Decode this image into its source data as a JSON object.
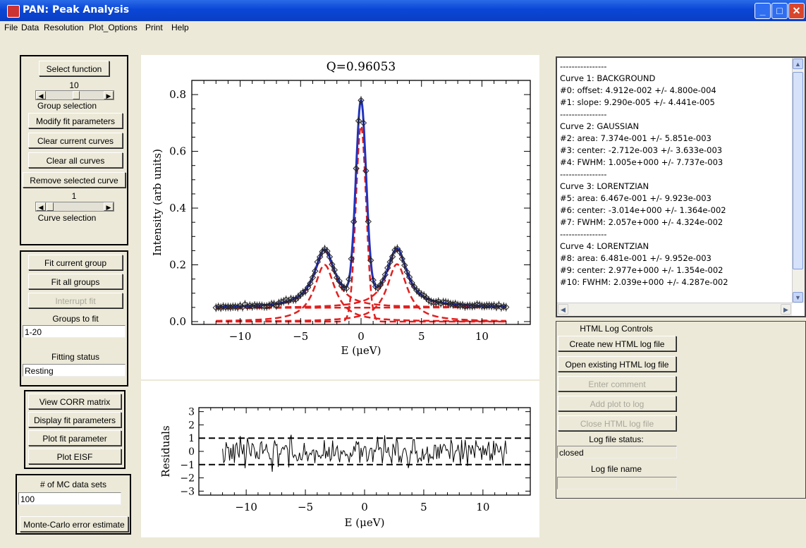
{
  "window": {
    "title": "PAN: Peak Analysis"
  },
  "menu": [
    "File",
    "Data",
    "Resolution",
    "Plot_Options",
    "Print",
    "Help"
  ],
  "left": {
    "select_function": "Select function",
    "group_value": "10",
    "group_label": "Group selection",
    "modify": "Modify fit parameters",
    "clear_current": "Clear current curves",
    "clear_all": "Clear all curves",
    "remove_selected": "Remove selected curve",
    "curve_value": "1",
    "curve_label": "Curve selection",
    "fit_current": "Fit current group",
    "fit_all": "Fit all groups",
    "interrupt": "Interrupt fit",
    "groups_to_fit_label": "Groups to fit",
    "groups_to_fit_value": "1-20",
    "fitting_status_label": "Fitting status",
    "fitting_status_value": "Resting",
    "view_corr": "View CORR matrix",
    "display_fit": "Display fit parameters",
    "plot_fit": "Plot fit parameter",
    "plot_eisf": "Plot EISF",
    "mc_label": "# of MC data sets",
    "mc_value": "100",
    "mc_button": "Monte-Carlo error estimate"
  },
  "results_text": [
    "----------------",
    "Curve 1: BACKGROUND",
    "#0: offset: 4.912e-002 +/- 4.800e-004",
    "#1: slope: 9.290e-005 +/- 4.441e-005",
    "----------------",
    "Curve 2: GAUSSIAN",
    "#2: area: 7.374e-001 +/- 5.851e-003",
    "#3: center: -2.712e-003 +/- 3.633e-003",
    "#4: FWHM: 1.005e+000 +/- 7.737e-003",
    "----------------",
    "Curve 3: LORENTZIAN",
    "#5: area: 6.467e-001 +/- 9.923e-003",
    "#6: center: -3.014e+000 +/- 1.364e-002",
    "#7: FWHM: 2.057e+000 +/- 4.324e-002",
    "----------------",
    "Curve 4: LORENTZIAN",
    "#8: area: 6.481e-001 +/- 9.952e-003",
    "#9: center: 2.977e+000 +/- 1.354e-002",
    "#10: FWHM: 2.039e+000 +/- 4.287e-002"
  ],
  "log": {
    "title": "HTML Log Controls",
    "create": "Create new HTML log file",
    "open": "Open existing HTML log file",
    "comment": "Enter comment",
    "add_plot": "Add plot to log",
    "close": "Close HTML log file",
    "status_label": "Log file status:",
    "status_value": "closed",
    "name_label": "Log file name",
    "name_value": ""
  },
  "colors": {
    "titlebar": "#0a46d6",
    "fit_line": "#2233bb",
    "components": "#e02020",
    "panel_bg": "#ece9d8"
  },
  "chart_data": [
    {
      "type": "line",
      "title": "Q=0.96053",
      "xlabel": "E (μeV)",
      "ylabel": "Intensity (arb units)",
      "xlim": [
        -14,
        14
      ],
      "ylim": [
        -0.01,
        0.85
      ],
      "xticks": [
        -10,
        -5,
        0,
        5,
        10
      ],
      "yticks": [
        0.0,
        0.2,
        0.4,
        0.6,
        0.8
      ],
      "ytick_labels": [
        "0.0",
        "0.2",
        "0.4",
        "0.6",
        "0.8"
      ],
      "model": {
        "background": {
          "offset": 0.04912,
          "slope": 9.29e-05
        },
        "gaussian": {
          "area": 0.7374,
          "center": -0.002712,
          "fwhm": 1.005
        },
        "lorentzians": [
          {
            "area": 0.6467,
            "center": -3.014,
            "fwhm": 2.057
          },
          {
            "area": 0.6481,
            "center": 2.977,
            "fwhm": 2.039
          }
        ]
      },
      "data_range": [
        -12,
        12
      ],
      "data_step": 0.2
    },
    {
      "type": "line",
      "xlabel": "E (μeV)",
      "ylabel": "Residuals",
      "xlim": [
        -14,
        14
      ],
      "ylim": [
        -3.3,
        3.3
      ],
      "xticks": [
        -10,
        -5,
        0,
        5,
        10
      ],
      "yticks": [
        -3,
        -2,
        -1,
        0,
        1,
        2,
        3
      ],
      "reference_lines": [
        1,
        -1
      ],
      "data_range": [
        -12,
        12
      ],
      "data_step": 0.1
    }
  ]
}
